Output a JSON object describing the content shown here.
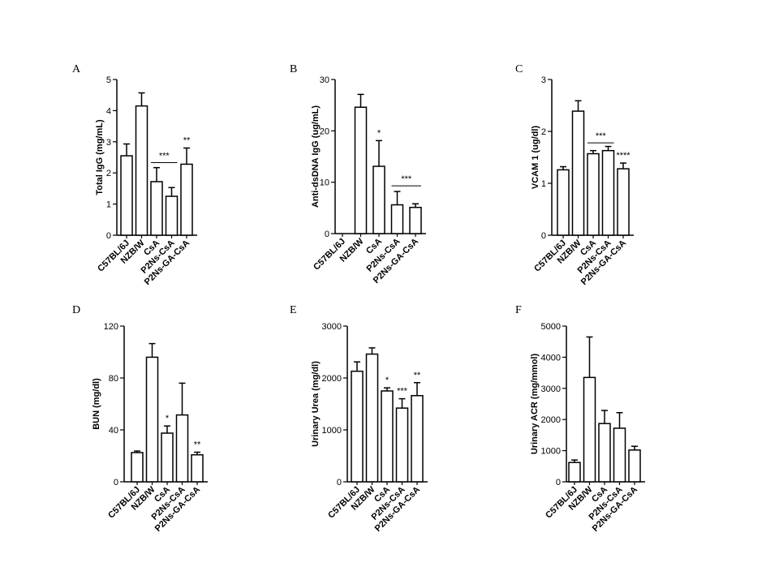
{
  "chart_data": [
    {
      "panel": "A",
      "type": "bar",
      "ylabel": "Total IgG (mg/mL)",
      "categories": [
        "C57BL/6J",
        "NZB/W",
        "CsA",
        "P2Ns-CsA",
        "P2Ns-GA-CsA"
      ],
      "values": [
        2.55,
        4.15,
        1.72,
        1.25,
        2.28
      ],
      "errors": [
        0.38,
        0.42,
        0.45,
        0.28,
        0.52
      ],
      "ylim": [
        0,
        5
      ],
      "yticks": [
        0,
        1,
        2,
        3,
        4,
        5
      ],
      "annotations": [
        {
          "text": "***",
          "bracket": [
            2,
            3
          ],
          "y": 2.33
        },
        {
          "text": "**",
          "bar": 4
        }
      ]
    },
    {
      "panel": "B",
      "type": "bar",
      "ylabel": "Anti-dsDNA IgG (ug/mL)",
      "categories": [
        "C57BL/6J",
        "NZB/W",
        "CsA",
        "P2Ns-CsA",
        "P2Ns-GA-CsA"
      ],
      "values": [
        0,
        24.6,
        13.1,
        5.6,
        5.1
      ],
      "errors": [
        0,
        2.5,
        5.0,
        2.6,
        0.7
      ],
      "ylim": [
        0,
        30
      ],
      "yticks": [
        0,
        10,
        20,
        30
      ],
      "annotations": [
        {
          "text": "*",
          "bar": 2
        },
        {
          "text": "***",
          "bracket": [
            3,
            4
          ],
          "y": 9.3
        }
      ]
    },
    {
      "panel": "C",
      "type": "bar",
      "ylabel": "VCAM 1 (ug/dl)",
      "categories": [
        "C57BL/6J",
        "NZB/W",
        "CsA",
        "P2Ns-CsA",
        "P2Ns-GA-CsA"
      ],
      "values": [
        1.26,
        2.39,
        1.57,
        1.63,
        1.28
      ],
      "errors": [
        0.06,
        0.2,
        0.06,
        0.08,
        0.11
      ],
      "ylim": [
        0,
        3
      ],
      "yticks": [
        0,
        1,
        2,
        3
      ],
      "annotations": [
        {
          "text": "***",
          "bracket": [
            2,
            3
          ],
          "y": 1.78
        },
        {
          "text": "****",
          "bar": 4
        }
      ]
    },
    {
      "panel": "D",
      "type": "bar",
      "ylabel": "BUN (mg/dl)",
      "categories": [
        "C57BL/6J",
        "NZB/W",
        "CsA",
        "P2Ns-CsA",
        "P2Ns-GA-CsA"
      ],
      "values": [
        22.5,
        96,
        37.5,
        51.5,
        20.8
      ],
      "errors": [
        1.2,
        10.5,
        5.5,
        24.5,
        2.0
      ],
      "ylim": [
        0,
        120
      ],
      "yticks": [
        0,
        40,
        80,
        120
      ],
      "annotations": [
        {
          "text": "*",
          "bar": 2
        },
        {
          "text": "**",
          "bar": 4
        }
      ]
    },
    {
      "panel": "E",
      "type": "bar",
      "ylabel": "Urinary Urea (mg/dl)",
      "categories": [
        "C57BL/6J",
        "NZB/W",
        "CsA",
        "P2Ns-CsA",
        "P2Ns-GA-CsA"
      ],
      "values": [
        2130,
        2460,
        1750,
        1420,
        1660
      ],
      "errors": [
        180,
        120,
        60,
        180,
        250
      ],
      "ylim": [
        0,
        3000
      ],
      "yticks": [
        0,
        1000,
        2000,
        3000
      ],
      "annotations": [
        {
          "text": "*",
          "bar": 2
        },
        {
          "text": "***",
          "bar": 3
        },
        {
          "text": "**",
          "bar": 4
        }
      ]
    },
    {
      "panel": "F",
      "type": "bar",
      "ylabel": "Urinary ACR (mg/mmol)",
      "categories": [
        "C57BL/6J",
        "NZB/W",
        "CsA",
        "P2Ns-CsA",
        "P2Ns-GA-CsA"
      ],
      "values": [
        620,
        3350,
        1870,
        1720,
        1020
      ],
      "errors": [
        80,
        1300,
        420,
        500,
        120
      ],
      "ylim": [
        0,
        5000
      ],
      "yticks": [
        0,
        1000,
        2000,
        3000,
        4000,
        5000
      ],
      "annotations": []
    }
  ]
}
